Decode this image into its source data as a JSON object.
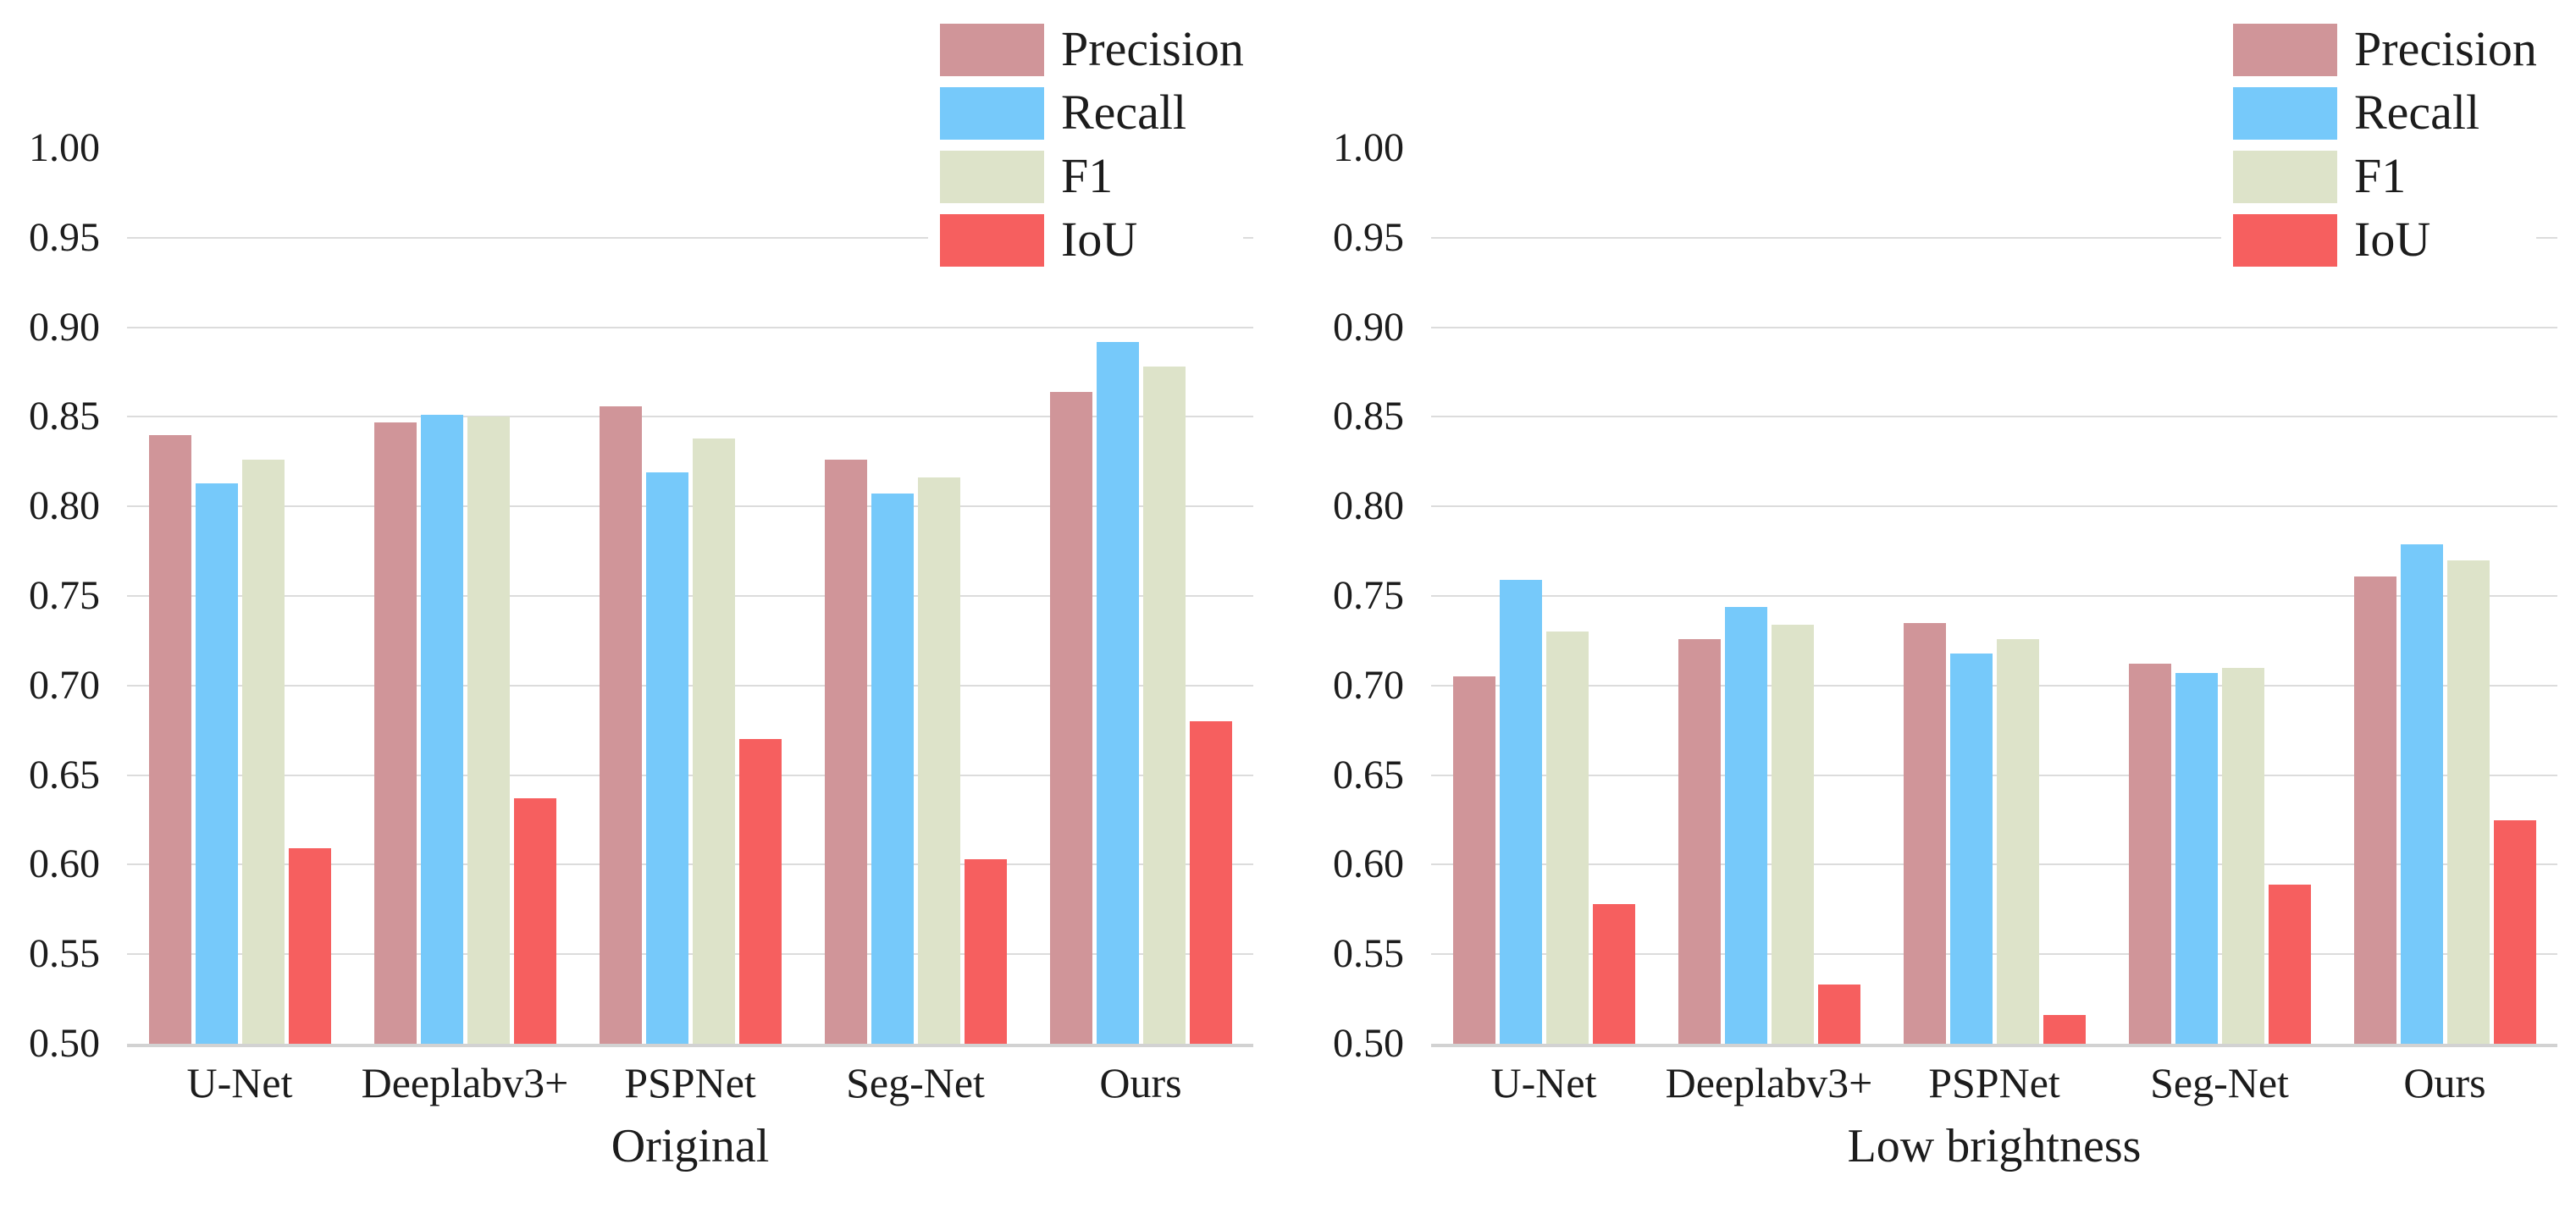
{
  "figure": {
    "kind": "two-panel grouped bar figure",
    "background": "#ffffff"
  },
  "legend": {
    "items": [
      "Precision",
      "Recall",
      "F1",
      "IoU"
    ],
    "position": "top-right"
  },
  "colors": {
    "precision": "#d09599",
    "recall": "#76c9fa",
    "f1": "#dde3c9",
    "iou": "#f65f5f",
    "gridline": "#dcdcdc",
    "axis": "#d2d2d2",
    "text": "#1c1c1c",
    "background": "#ffffff"
  },
  "chart_data": [
    {
      "type": "bar",
      "title": "Original",
      "categories": [
        "U-Net",
        "Deeplabv3+",
        "PSPNet",
        "Seg-Net",
        "Ours"
      ],
      "series": [
        {
          "name": "Precision",
          "color": "#d09599",
          "values": [
            0.84,
            0.847,
            0.856,
            0.826,
            0.864
          ]
        },
        {
          "name": "Recall",
          "color": "#76c9fa",
          "values": [
            0.813,
            0.851,
            0.819,
            0.807,
            0.892
          ]
        },
        {
          "name": "F1",
          "color": "#dde3c9",
          "values": [
            0.826,
            0.85,
            0.838,
            0.816,
            0.878
          ]
        },
        {
          "name": "IoU",
          "color": "#f65f5f",
          "values": [
            0.609,
            0.637,
            0.67,
            0.603,
            0.68
          ]
        }
      ],
      "ylim": [
        0.5,
        1.0
      ],
      "yticks": [
        "1.00",
        "0.95",
        "0.90",
        "0.85",
        "0.80",
        "0.75",
        "0.70",
        "0.65",
        "0.60",
        "0.55",
        "0.50"
      ],
      "grid": "horizontal",
      "legend_position": "top-right"
    },
    {
      "type": "bar",
      "title": "Low brightness",
      "categories": [
        "U-Net",
        "Deeplabv3+",
        "PSPNet",
        "Seg-Net",
        "Ours"
      ],
      "series": [
        {
          "name": "Precision",
          "color": "#d09599",
          "values": [
            0.705,
            0.726,
            0.735,
            0.712,
            0.761
          ]
        },
        {
          "name": "Recall",
          "color": "#76c9fa",
          "values": [
            0.759,
            0.744,
            0.718,
            0.707,
            0.779
          ]
        },
        {
          "name": "F1",
          "color": "#dde3c9",
          "values": [
            0.73,
            0.734,
            0.726,
            0.71,
            0.77
          ]
        },
        {
          "name": "IoU",
          "color": "#f65f5f",
          "values": [
            0.578,
            0.533,
            0.516,
            0.589,
            0.625
          ]
        }
      ],
      "ylim": [
        0.5,
        1.0
      ],
      "yticks": [
        "1.00",
        "0.95",
        "0.90",
        "0.85",
        "0.80",
        "0.75",
        "0.70",
        "0.65",
        "0.60",
        "0.55",
        "0.50"
      ],
      "grid": "horizontal",
      "legend_position": "top-right"
    }
  ]
}
